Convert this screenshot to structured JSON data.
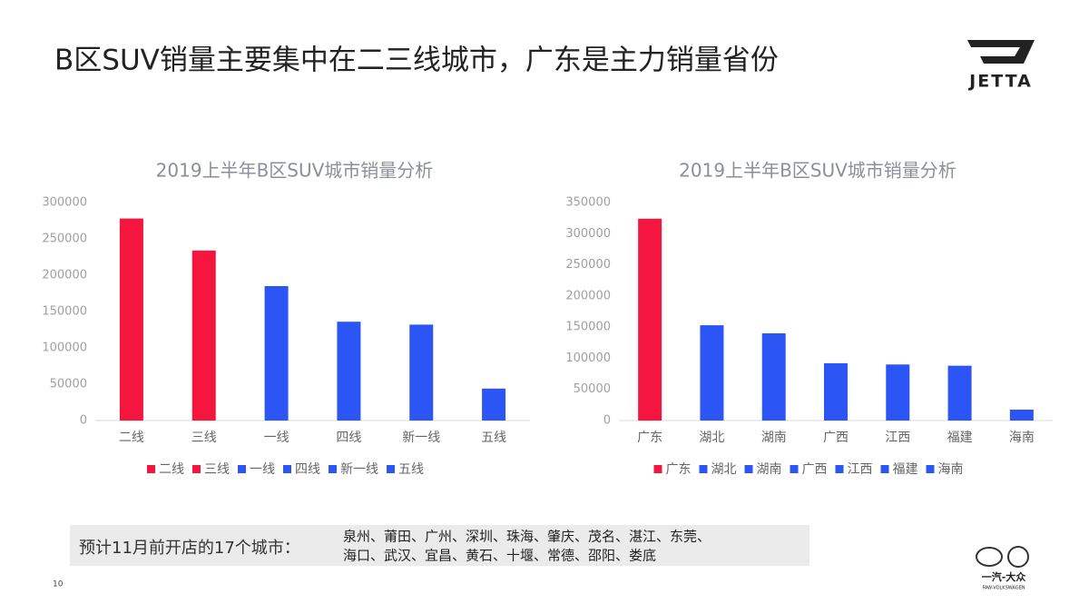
{
  "title": "B区SUV销量主要集中在二三线城市，广东是主力销量省份",
  "brand": {
    "name": "JETTA",
    "maker_cn": "一汽-大众",
    "maker_en": "FAW-VOLKSWAGEN"
  },
  "note": {
    "label": "预计11月前开店的17个城市：",
    "lines": [
      "泉州、莆田、广州、深圳、珠海、肇庆、茂名、湛江、东莞、",
      "海口、武汉、宜昌、黄石、十堰、常德、邵阳、娄底"
    ]
  },
  "page_number": "10",
  "chart_data": [
    {
      "type": "bar",
      "title": "2019上半年B区SUV城市销量分析",
      "categories": [
        "二线",
        "三线",
        "一线",
        "四线",
        "新一线",
        "五线"
      ],
      "values": [
        278000,
        234000,
        185000,
        136000,
        132000,
        44000
      ],
      "colors": [
        "#f5163f",
        "#f5163f",
        "#2b56f5",
        "#2b56f5",
        "#2b56f5",
        "#2b56f5"
      ],
      "ylim": [
        0,
        300000
      ],
      "yticks": [
        0,
        50000,
        100000,
        150000,
        200000,
        250000,
        300000
      ],
      "legend": "bottom"
    },
    {
      "type": "bar",
      "title": "2019上半年B区SUV城市销量分析",
      "categories": [
        "广东",
        "湖北",
        "湖南",
        "广西",
        "江西",
        "福建",
        "海南"
      ],
      "values": [
        324000,
        153000,
        140000,
        92000,
        90000,
        88000,
        17500
      ],
      "colors": [
        "#f5163f",
        "#2b56f5",
        "#2b56f5",
        "#2b56f5",
        "#2b56f5",
        "#2b56f5",
        "#2b56f5"
      ],
      "ylim": [
        0,
        350000
      ],
      "yticks": [
        0,
        50000,
        100000,
        150000,
        200000,
        250000,
        300000,
        350000
      ],
      "legend": "bottom"
    }
  ]
}
